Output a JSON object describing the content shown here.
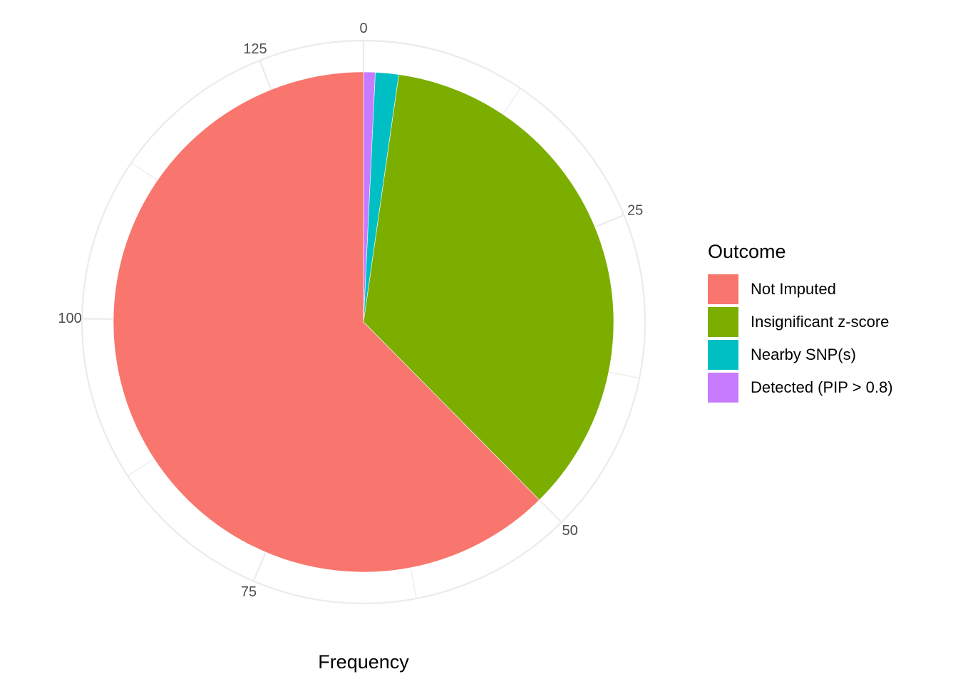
{
  "chart_data": {
    "type": "pie",
    "title": "",
    "xlabel": "Frequency",
    "ylabel": "",
    "legend_title": "Outcome",
    "legend_position": "right",
    "total": 133,
    "categories": [
      "Detected (PIP > 0.8)",
      "Nearby SNP(s)",
      "Insignificant z-score",
      "Not Imputed"
    ],
    "values": [
      1,
      2,
      47,
      83
    ],
    "colors": {
      "Not Imputed": "#F8766D",
      "Insignificant z-score": "#7CAE00",
      "Nearby SNP(s)": "#00BFC4",
      "Detected (PIP > 0.8)": "#C77CFF"
    },
    "ticks": [
      0,
      25,
      50,
      75,
      100,
      125
    ],
    "tick_labels": [
      "0",
      "25",
      "50",
      "75",
      "100",
      "125"
    ],
    "grid": true
  },
  "legend": {
    "title": "Outcome",
    "items": [
      {
        "label": "Not Imputed",
        "color": "#F8766D"
      },
      {
        "label": "Insignificant z-score",
        "color": "#7CAE00"
      },
      {
        "label": "Nearby SNP(s)",
        "color": "#00BFC4"
      },
      {
        "label": "Detected (PIP > 0.8)",
        "color": "#C77CFF"
      }
    ]
  }
}
